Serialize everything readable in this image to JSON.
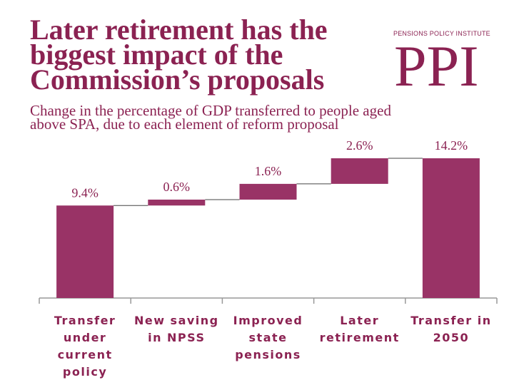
{
  "header": {
    "title_lines": [
      "Later retirement has the",
      "biggest impact of the",
      "Commission’s proposals"
    ],
    "logo_small": "PENSIONS POLICY INSTITUTE",
    "logo_big": "PPI",
    "subtitle_lines": [
      "Change in the percentage of GDP transferred to people aged",
      "above SPA, due to each element of reform proposal"
    ]
  },
  "colors": {
    "bar": "#993366",
    "text": "#8b2252",
    "axis": "#999999"
  },
  "chart_data": {
    "type": "bar",
    "subtype": "waterfall",
    "categories": [
      "Transfer under current policy",
      "New saving in NPSS",
      "Improved state pensions",
      "Later retirement",
      "Transfer in 2050"
    ],
    "category_lines": [
      [
        "Transfer",
        "under",
        "current",
        "policy"
      ],
      [
        "New saving",
        "in NPSS"
      ],
      [
        "Improved",
        "state",
        "pensions"
      ],
      [
        "Later",
        "retirement"
      ],
      [
        "Transfer in",
        "2050"
      ]
    ],
    "values": [
      9.4,
      0.6,
      1.6,
      2.6,
      14.2
    ],
    "steps": [
      "total",
      "increase",
      "increase",
      "increase",
      "total"
    ],
    "data_labels": [
      "9.4%",
      "0.6%",
      "1.6%",
      "2.6%",
      "14.2%"
    ],
    "ylim": [
      0,
      14.2
    ],
    "grid": false,
    "legend": "none"
  }
}
